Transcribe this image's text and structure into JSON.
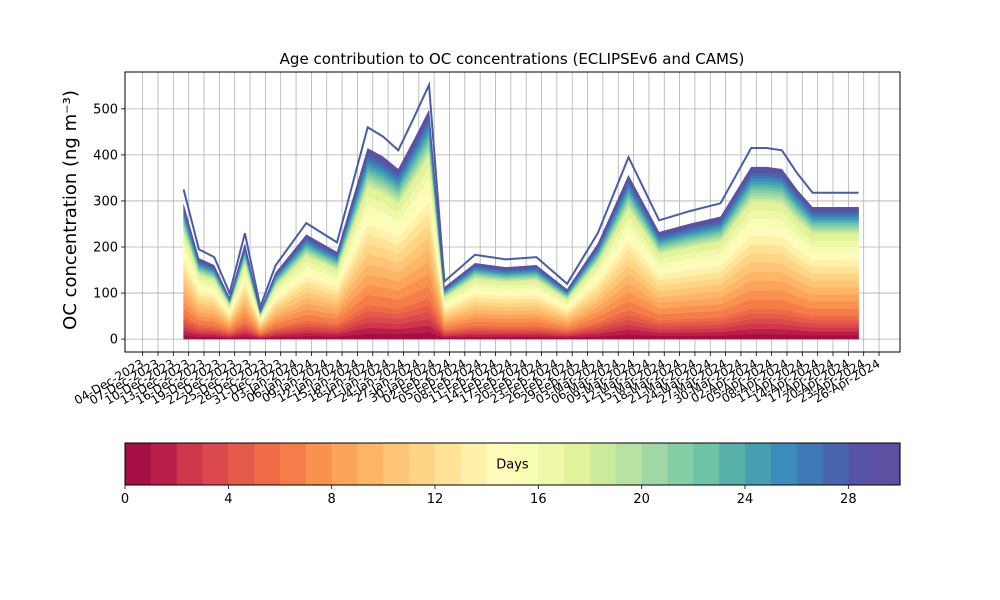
{
  "chart_data": {
    "type": "area",
    "stacked": true,
    "title": "Age contribution to OC concentrations (ECLIPSEv6 and CAMS)",
    "ylabel": "OC concentration (ng m⁻³)",
    "xlabel": "",
    "ylim": [
      -28,
      580
    ],
    "yticks": [
      0,
      100,
      200,
      300,
      400,
      500
    ],
    "grid": true,
    "x_tick_labels": [
      "04-Dec-2023",
      "07-Dec-2023",
      "10-Dec-2023",
      "13-Dec-2023",
      "16-Dec-2023",
      "19-Dec-2023",
      "22-Dec-2023",
      "25-Dec-2023",
      "28-Dec-2023",
      "31-Dec-2023",
      "03-Jan-2024",
      "06-Jan-2024",
      "09-Jan-2024",
      "12-Jan-2024",
      "15-Jan-2024",
      "18-Jan-2024",
      "21-Jan-2024",
      "24-Jan-2024",
      "27-Jan-2024",
      "30-Jan-2024",
      "02-Feb-2024",
      "05-Feb-2024",
      "08-Feb-2024",
      "11-Feb-2024",
      "14-Feb-2024",
      "17-Feb-2024",
      "20-Feb-2024",
      "23-Feb-2024",
      "26-Feb-2024",
      "29-Feb-2024",
      "03-Mar-2024",
      "06-Mar-2024",
      "09-Mar-2024",
      "12-Mar-2024",
      "15-Mar-2024",
      "18-Mar-2024",
      "21-Mar-2024",
      "24-Mar-2024",
      "27-Mar-2024",
      "30-Mar-2024",
      "02-Apr-2024",
      "05-Apr-2024",
      "08-Apr-2024",
      "11-Apr-2024",
      "14-Apr-2024",
      "17-Apr-2024",
      "20-Apr-2024",
      "23-Apr-2024",
      "26-Apr-2024"
    ],
    "x": [
      "12-Dec-2023",
      "15-Dec-2023",
      "18-Dec-2023",
      "21-Dec-2023",
      "24-Dec-2023",
      "27-Dec-2023",
      "30-Dec-2023",
      "05-Jan-2024",
      "11-Jan-2024",
      "17-Jan-2024",
      "20-Jan-2024",
      "23-Jan-2024",
      "26-Jan-2024",
      "29-Jan-2024",
      "01-Feb-2024",
      "07-Feb-2024",
      "13-Feb-2024",
      "19-Feb-2024",
      "25-Feb-2024",
      "02-Mar-2024",
      "08-Mar-2024",
      "14-Mar-2024",
      "20-Mar-2024",
      "26-Mar-2024",
      "01-Apr-2024",
      "04-Apr-2024",
      "07-Apr-2024",
      "10-Apr-2024",
      "13-Apr-2024",
      "16-Apr-2024",
      "19-Apr-2024",
      "22-Apr-2024"
    ],
    "total": [
      325,
      195,
      178,
      100,
      230,
      70,
      160,
      252,
      210,
      460,
      440,
      410,
      480,
      552,
      125,
      183,
      173,
      178,
      120,
      230,
      395,
      258,
      278,
      295,
      415,
      415,
      410,
      360,
      318,
      318,
      318,
      318
    ],
    "fraction_profile_note_values": [
      0.16,
      0.45,
      0.72,
      0.9,
      1.0
    ],
    "colorbar": {
      "label": "Days",
      "min": 0,
      "max": 30,
      "ticks": [
        0,
        4,
        8,
        12,
        16,
        20,
        24,
        28
      ],
      "colormap": "Spectral",
      "colors": [
        "#a50f44",
        "#bb1e49",
        "#d0364c",
        "#dc494c",
        "#e55b49",
        "#ef6b45",
        "#f57d4a",
        "#f9914f",
        "#fca35c",
        "#fdb567",
        "#fec576",
        "#fed485",
        "#fee295",
        "#fff1aa",
        "#fffbbb",
        "#f8fcb4",
        "#eef8a8",
        "#e2f39a",
        "#cdeb9d",
        "#b7e2a2",
        "#9fd8a4",
        "#86cea5",
        "#6dc3a5",
        "#58b2ab",
        "#46a0b2",
        "#3b8cbd",
        "#3f79b5",
        "#4866ac",
        "#5753a4",
        "#5e4fa2"
      ]
    }
  }
}
